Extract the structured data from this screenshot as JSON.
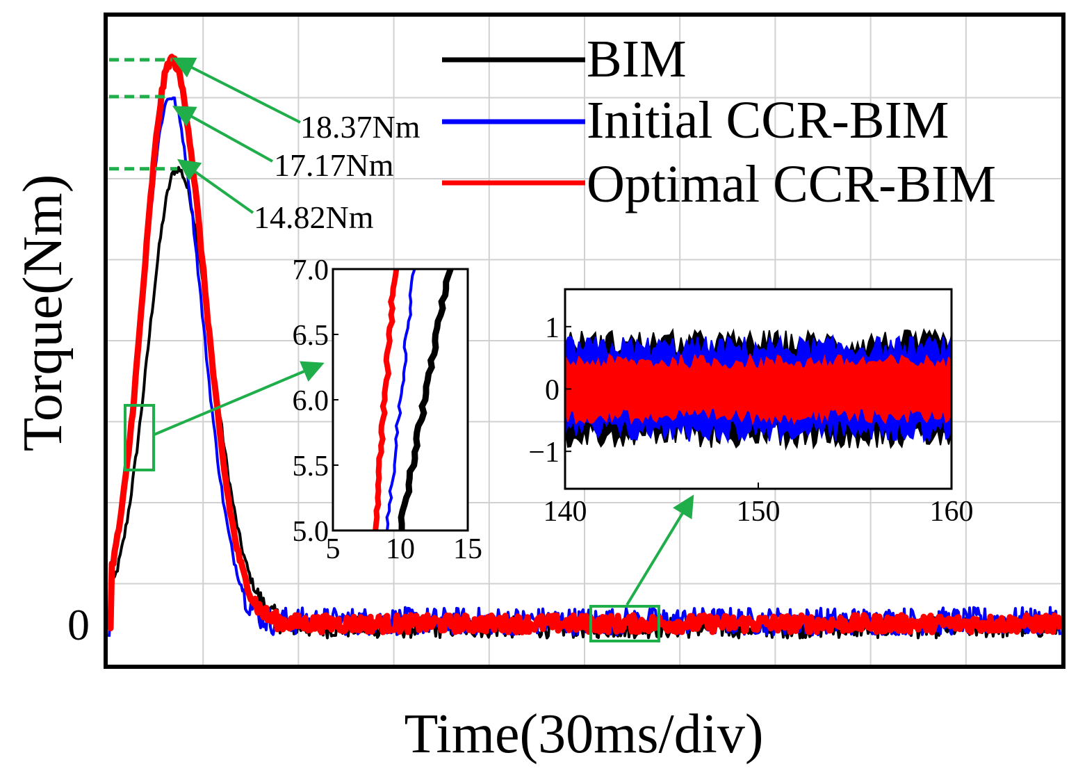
{
  "chart_data": {
    "type": "line",
    "xlabel": "Time(30ms/div)",
    "ylabel": "Torque(Nm)",
    "ytick_zero": "0",
    "grid": true,
    "legend_position": "top-right",
    "series": [
      {
        "name": "BIM",
        "color": "#000000",
        "peak": 14.82,
        "peak_label": "14.82Nm"
      },
      {
        "name": "Initial CCR-BIM",
        "color": "#0000ff",
        "peak": 17.17,
        "peak_label": "17.17Nm"
      },
      {
        "name": "Optimal CCR-BIM",
        "color": "#ff0000",
        "peak": 18.37,
        "peak_label": "18.37Nm"
      }
    ],
    "inset_rise": {
      "xlim": [
        5,
        15
      ],
      "ylim": [
        5.0,
        7.0
      ],
      "xticks": [
        "5",
        "10",
        "15"
      ],
      "yticks": [
        "5.0",
        "5.5",
        "6.0",
        "6.5",
        "7.0"
      ],
      "lines": [
        {
          "series": "Optimal CCR-BIM",
          "x": [
            8.1,
            9.6
          ],
          "y": [
            5.0,
            7.0
          ]
        },
        {
          "series": "Initial CCR-BIM",
          "x": [
            9.0,
            11.0
          ],
          "y": [
            5.0,
            7.0
          ]
        },
        {
          "series": "BIM",
          "x": [
            10.0,
            13.6
          ],
          "y": [
            5.0,
            7.0
          ]
        }
      ]
    },
    "inset_steady": {
      "xlim": [
        140,
        160
      ],
      "ylim": [
        -1.6,
        1.6
      ],
      "xticks": [
        "140",
        "150",
        "160"
      ],
      "yticks": [
        "1",
        "0",
        "−1"
      ],
      "bands": [
        {
          "series": "BIM",
          "amplitude": 0.95
        },
        {
          "series": "Initial CCR-BIM",
          "amplitude": 0.85
        },
        {
          "series": "Optimal CCR-BIM",
          "amplitude": 0.55
        }
      ]
    }
  },
  "colors": {
    "zoom_box": "#1fae4a",
    "grid": "#d0d0d0"
  }
}
